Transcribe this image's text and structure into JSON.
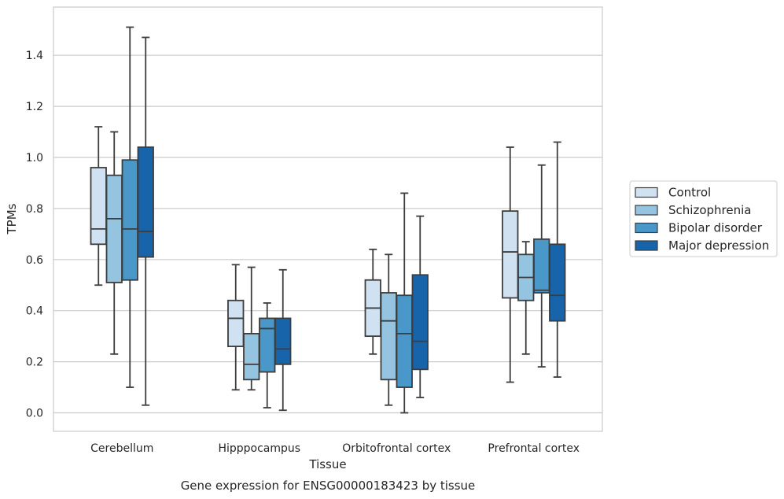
{
  "chart_data": {
    "type": "box",
    "caption": "Gene expression for ENSG00000183423 by tissue",
    "xlabel": "Tissue",
    "ylabel": "TPMs",
    "ylim": [
      -0.07,
      1.57
    ],
    "yticks": [
      0.0,
      0.2,
      0.4,
      0.6,
      0.8,
      1.0,
      1.2,
      1.4
    ],
    "ytick_labels": [
      "0.0",
      "0.2",
      "0.4",
      "0.6",
      "0.8",
      "1.0",
      "1.2",
      "1.4"
    ],
    "grid": "horizontal",
    "legend_position": "outside-right",
    "categories": [
      "Cerebellum",
      "Hipppocampus",
      "Orbitofrontal cortex",
      "Prefrontal cortex"
    ],
    "series": [
      {
        "name": "Control",
        "color": "#d0e1f2",
        "boxes": [
          {
            "min": 0.5,
            "q1": 0.66,
            "median": 0.72,
            "q3": 0.96,
            "max": 1.12
          },
          {
            "min": 0.09,
            "q1": 0.26,
            "median": 0.37,
            "q3": 0.44,
            "max": 0.58
          },
          {
            "min": 0.23,
            "q1": 0.3,
            "median": 0.41,
            "q3": 0.52,
            "max": 0.64
          },
          {
            "min": 0.12,
            "q1": 0.45,
            "median": 0.63,
            "q3": 0.79,
            "max": 1.04
          }
        ]
      },
      {
        "name": "Schizophrenia",
        "color": "#94c4df",
        "boxes": [
          {
            "min": 0.23,
            "q1": 0.51,
            "median": 0.76,
            "q3": 0.93,
            "max": 1.1
          },
          {
            "min": 0.09,
            "q1": 0.13,
            "median": 0.19,
            "q3": 0.31,
            "max": 0.57
          },
          {
            "min": 0.03,
            "q1": 0.13,
            "median": 0.36,
            "q3": 0.47,
            "max": 0.62
          },
          {
            "min": 0.23,
            "q1": 0.44,
            "median": 0.53,
            "q3": 0.62,
            "max": 0.67
          }
        ]
      },
      {
        "name": "Bipolar disorder",
        "color": "#4a98c9",
        "boxes": [
          {
            "min": 0.1,
            "q1": 0.52,
            "median": 0.72,
            "q3": 0.99,
            "max": 1.51
          },
          {
            "min": 0.02,
            "q1": 0.16,
            "median": 0.33,
            "q3": 0.37,
            "max": 0.43
          },
          {
            "min": 0.0,
            "q1": 0.1,
            "median": 0.31,
            "q3": 0.46,
            "max": 0.86
          },
          {
            "min": 0.18,
            "q1": 0.47,
            "median": 0.48,
            "q3": 0.68,
            "max": 0.97
          }
        ]
      },
      {
        "name": "Major depression",
        "color": "#1764ab",
        "boxes": [
          {
            "min": 0.03,
            "q1": 0.61,
            "median": 0.71,
            "q3": 1.04,
            "max": 1.47
          },
          {
            "min": 0.01,
            "q1": 0.19,
            "median": 0.25,
            "q3": 0.37,
            "max": 0.56
          },
          {
            "min": 0.06,
            "q1": 0.17,
            "median": 0.28,
            "q3": 0.54,
            "max": 0.77
          },
          {
            "min": 0.14,
            "q1": 0.36,
            "median": 0.46,
            "q3": 0.66,
            "max": 1.06
          }
        ]
      }
    ]
  }
}
